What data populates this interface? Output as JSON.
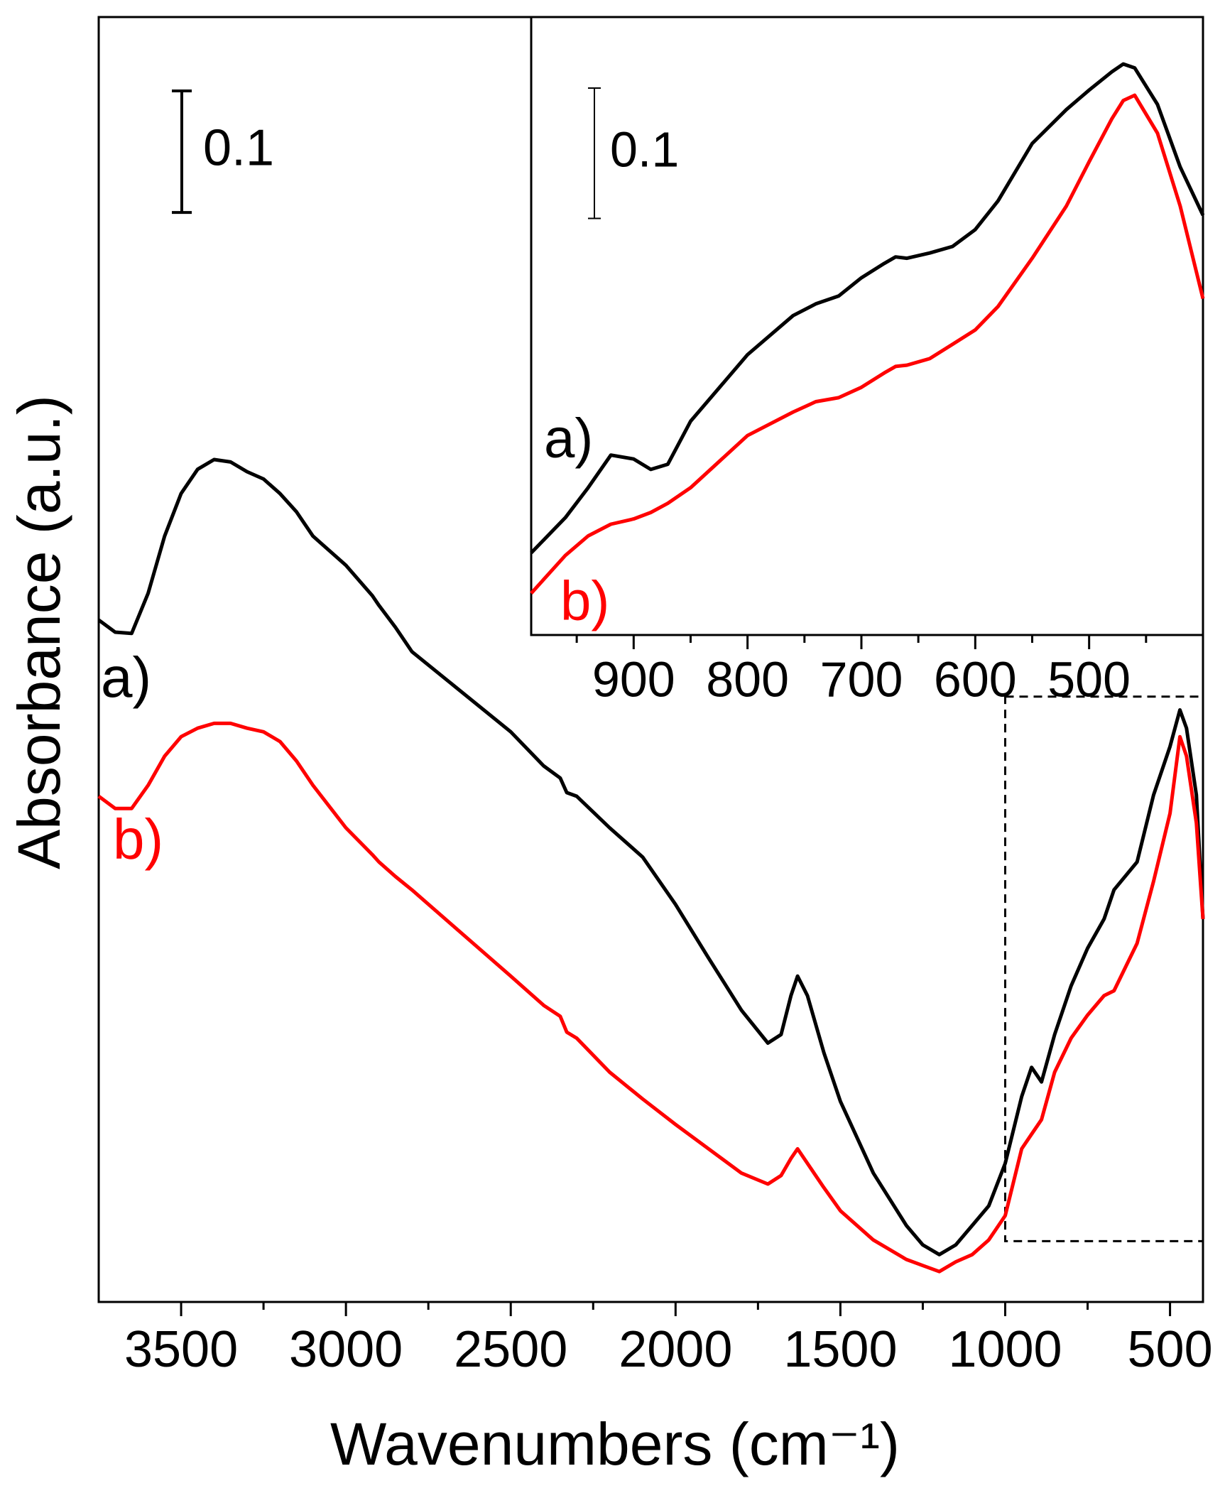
{
  "chart_data": [
    {
      "type": "line",
      "xlabel": "Wavenumbers (cm⁻¹)",
      "ylabel": "Absorbance (a.u.)",
      "xlim": [
        3750,
        400
      ],
      "xticks": [
        3500,
        3000,
        2500,
        2000,
        1500,
        1000,
        500
      ],
      "xminor_ticks": [
        3250,
        2750,
        2250,
        1750,
        1250,
        750
      ],
      "ylim": [
        0,
        1.057
      ],
      "scale_bar": 0.1,
      "inset_region": {
        "xlim": [
          1000,
          400
        ],
        "ylim": [
          0.05,
          0.498
        ]
      },
      "x": [
        3750,
        3700,
        3650,
        3600,
        3550,
        3500,
        3450,
        3400,
        3350,
        3300,
        3250,
        3200,
        3150,
        3100,
        3000,
        2920,
        2900,
        2850,
        2800,
        2500,
        2400,
        2350,
        2330,
        2300,
        2200,
        2100,
        2000,
        1900,
        1800,
        1720,
        1680,
        1650,
        1630,
        1600,
        1550,
        1500,
        1400,
        1300,
        1250,
        1200,
        1150,
        1100,
        1050,
        1000,
        950,
        920,
        890,
        850,
        800,
        750,
        700,
        670,
        600,
        550,
        500,
        470,
        450,
        420,
        400
      ],
      "series": [
        {
          "name": "a)",
          "color": "#000000",
          "values": [
            0.561,
            0.551,
            0.55,
            0.583,
            0.63,
            0.665,
            0.685,
            0.693,
            0.691,
            0.683,
            0.677,
            0.665,
            0.65,
            0.63,
            0.606,
            0.581,
            0.573,
            0.555,
            0.535,
            0.469,
            0.441,
            0.431,
            0.419,
            0.416,
            0.39,
            0.366,
            0.327,
            0.283,
            0.24,
            0.213,
            0.22,
            0.252,
            0.268,
            0.252,
            0.205,
            0.165,
            0.106,
            0.063,
            0.047,
            0.039,
            0.047,
            0.063,
            0.079,
            0.114,
            0.169,
            0.193,
            0.181,
            0.22,
            0.26,
            0.291,
            0.315,
            0.339,
            0.362,
            0.417,
            0.457,
            0.487,
            0.472,
            0.417,
            0.315
          ]
        },
        {
          "name": "b)",
          "color": "#ff0000",
          "values": [
            0.416,
            0.406,
            0.406,
            0.425,
            0.449,
            0.465,
            0.472,
            0.476,
            0.476,
            0.472,
            0.469,
            0.461,
            0.445,
            0.425,
            0.39,
            0.368,
            0.362,
            0.35,
            0.339,
            0.268,
            0.244,
            0.235,
            0.222,
            0.217,
            0.189,
            0.167,
            0.146,
            0.126,
            0.106,
            0.097,
            0.104,
            0.118,
            0.126,
            0.114,
            0.094,
            0.075,
            0.051,
            0.035,
            0.03,
            0.025,
            0.033,
            0.039,
            0.051,
            0.071,
            0.126,
            0.138,
            0.15,
            0.189,
            0.217,
            0.236,
            0.252,
            0.256,
            0.295,
            0.346,
            0.402,
            0.465,
            0.449,
            0.394,
            0.315
          ]
        }
      ]
    },
    {
      "type": "line",
      "xlim": [
        990,
        400
      ],
      "xticks": [
        900,
        800,
        700,
        600,
        500
      ],
      "xminor_ticks": [
        950,
        850,
        750,
        650,
        550,
        450
      ],
      "ylim": [
        0,
        0.474
      ],
      "scale_bar": 0.1,
      "x": [
        990,
        960,
        940,
        920,
        900,
        885,
        870,
        850,
        800,
        760,
        740,
        720,
        700,
        680,
        670,
        660,
        640,
        620,
        600,
        580,
        550,
        520,
        500,
        480,
        470,
        460,
        440,
        420,
        400
      ],
      "series": [
        {
          "name": "a)",
          "color": "#000000",
          "values": [
            0.063,
            0.09,
            0.113,
            0.138,
            0.135,
            0.127,
            0.131,
            0.164,
            0.215,
            0.245,
            0.254,
            0.26,
            0.274,
            0.285,
            0.29,
            0.289,
            0.293,
            0.298,
            0.311,
            0.333,
            0.377,
            0.403,
            0.418,
            0.432,
            0.438,
            0.435,
            0.407,
            0.359,
            0.322
          ]
        },
        {
          "name": "b)",
          "color": "#ff0000",
          "values": [
            0.032,
            0.061,
            0.076,
            0.085,
            0.089,
            0.094,
            0.101,
            0.113,
            0.153,
            0.171,
            0.179,
            0.182,
            0.19,
            0.201,
            0.206,
            0.207,
            0.212,
            0.223,
            0.234,
            0.252,
            0.289,
            0.329,
            0.363,
            0.396,
            0.41,
            0.414,
            0.385,
            0.329,
            0.258
          ]
        }
      ]
    }
  ]
}
